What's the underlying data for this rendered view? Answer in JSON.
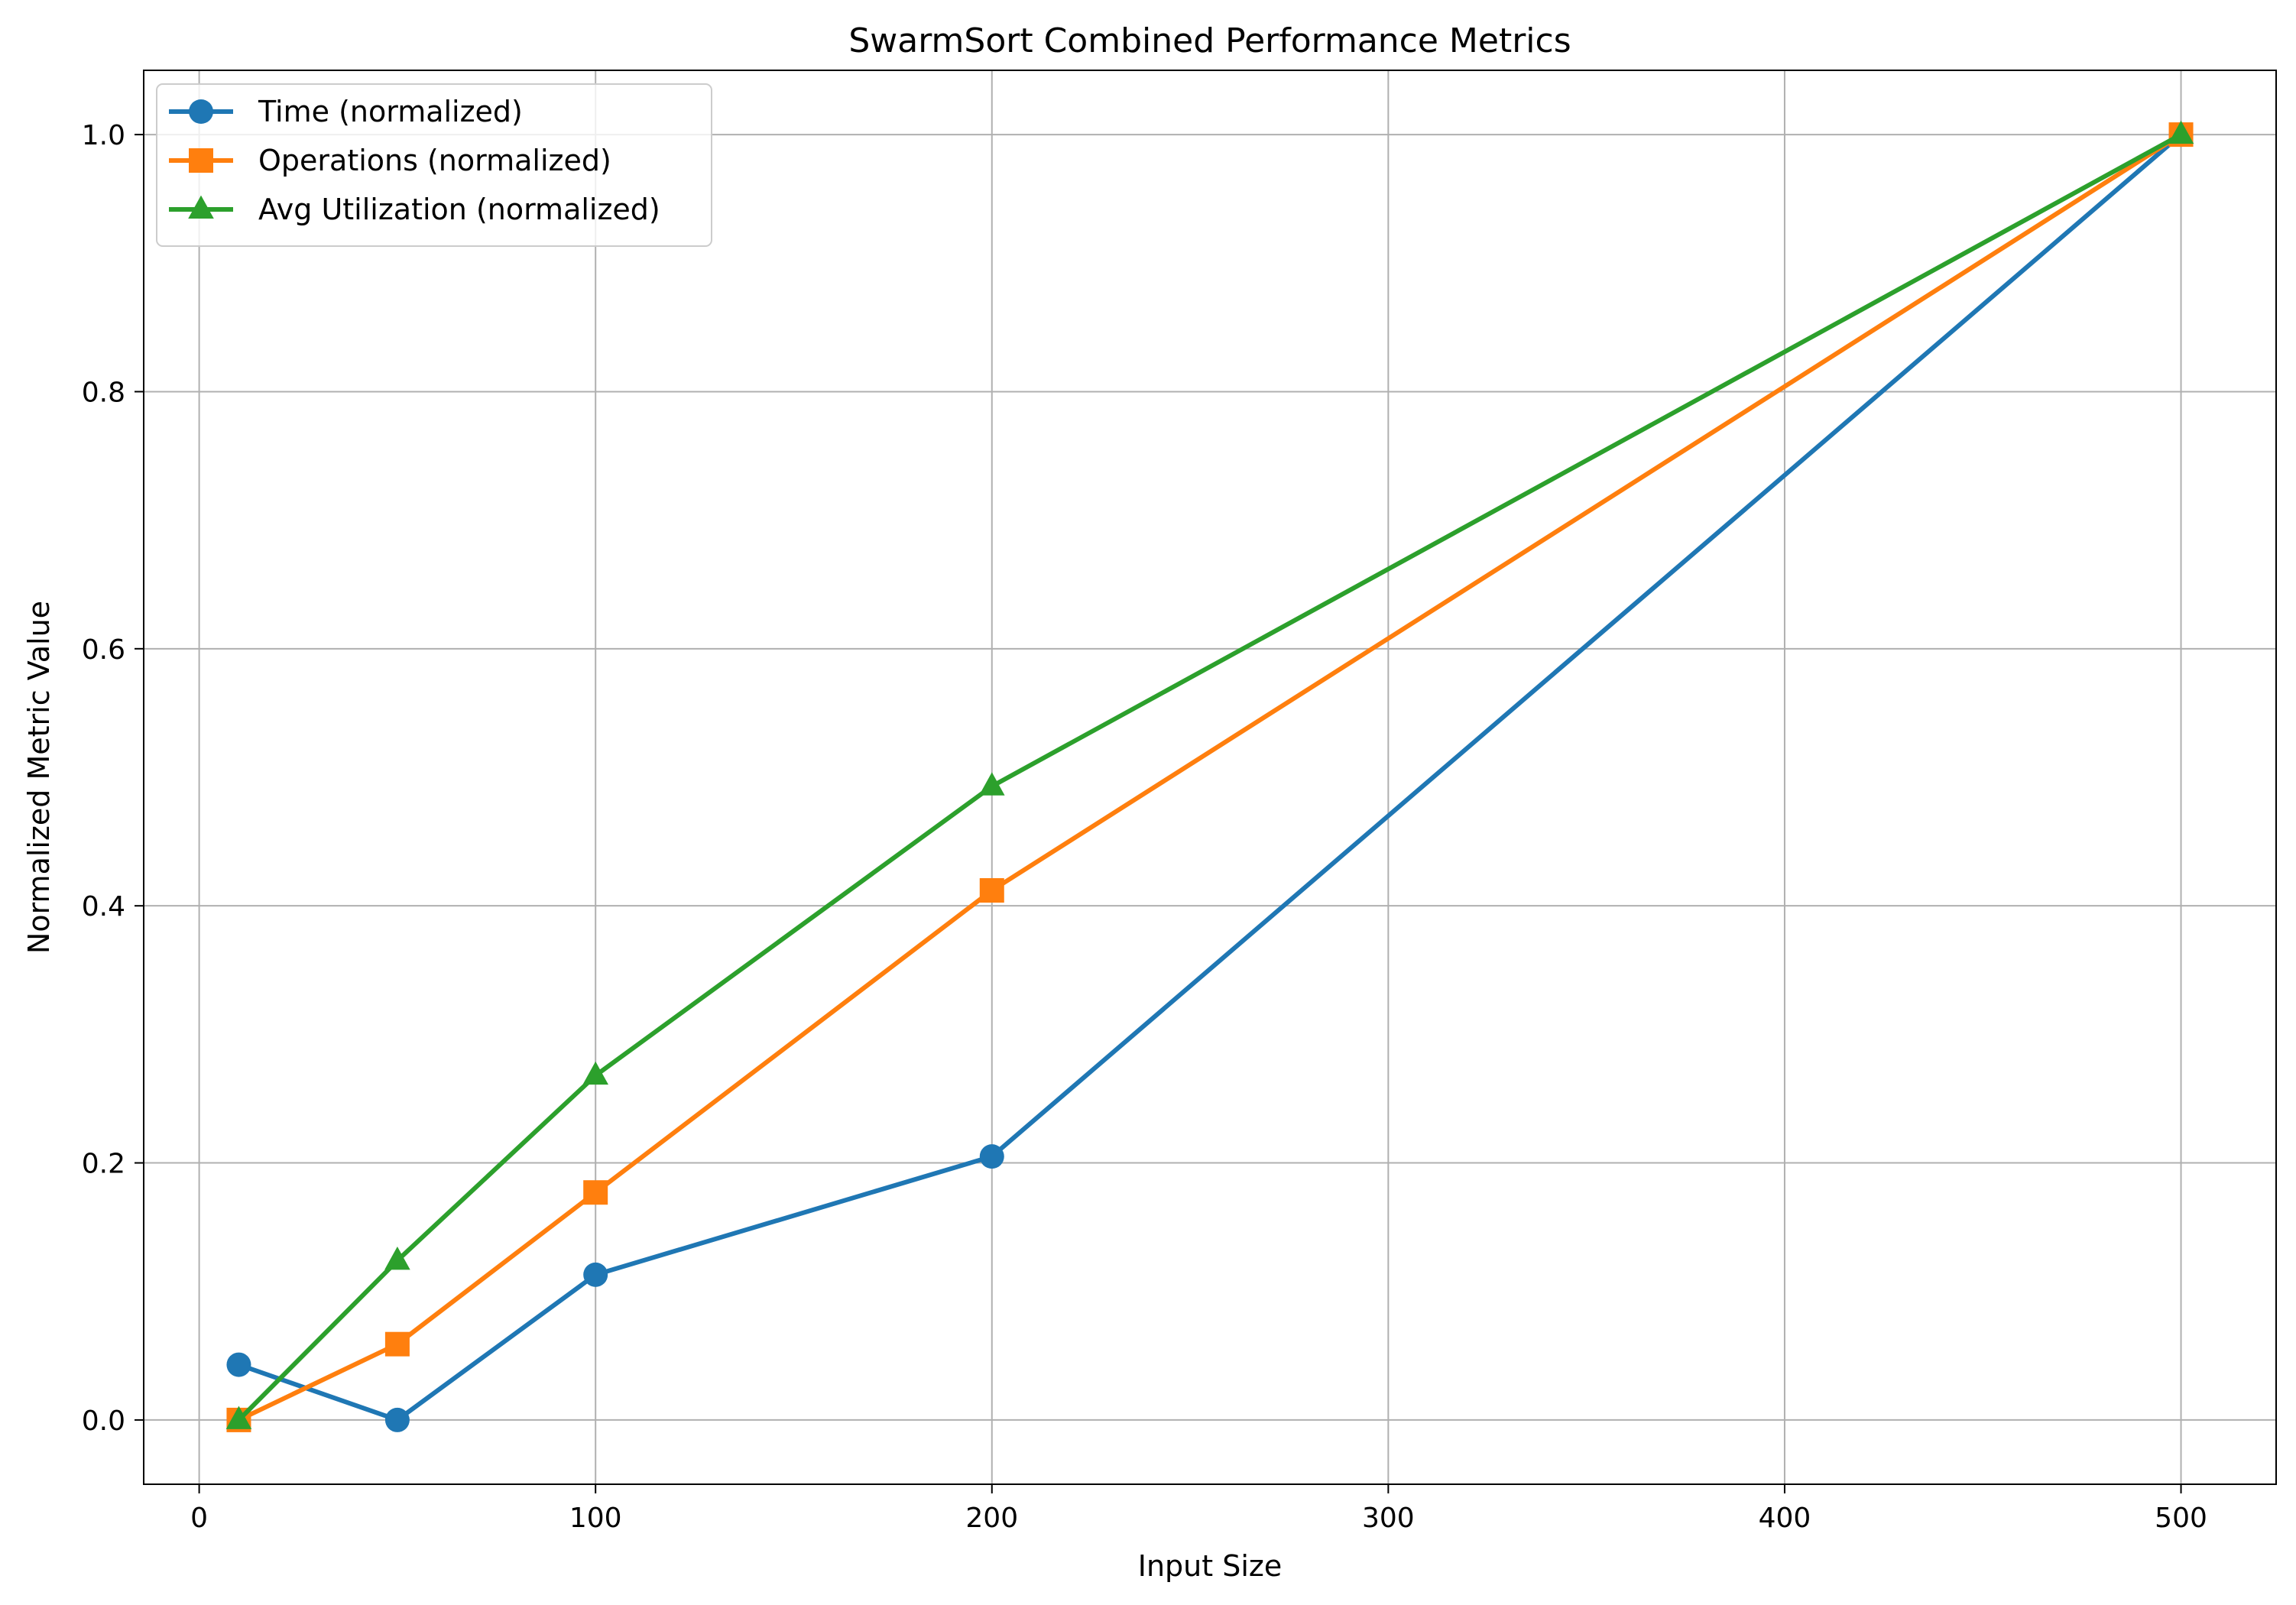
{
  "chart_data": {
    "type": "line",
    "title": "SwarmSort Combined Performance Metrics",
    "xlabel": "Input Size",
    "ylabel": "Normalized Metric Value",
    "x": [
      10,
      50,
      100,
      200,
      500
    ],
    "xlim": [
      -14,
      524
    ],
    "ylim": [
      -0.05,
      1.05
    ],
    "xticks": [
      0,
      100,
      200,
      300,
      400,
      500
    ],
    "yticks": [
      0.0,
      0.2,
      0.4,
      0.6,
      0.8,
      1.0
    ],
    "xtick_labels": [
      "0",
      "100",
      "200",
      "300",
      "400",
      "500"
    ],
    "ytick_labels": [
      "0.0",
      "0.2",
      "0.4",
      "0.6",
      "0.8",
      "1.0"
    ],
    "grid": true,
    "legend_position": "top-left",
    "series": [
      {
        "name": "Time (normalized)",
        "color": "#1f77b4",
        "marker": "circle",
        "values": [
          0.043,
          0.0,
          0.113,
          0.205,
          1.0
        ]
      },
      {
        "name": "Operations (normalized)",
        "color": "#ff7f0e",
        "marker": "square",
        "values": [
          0.0,
          0.059,
          0.177,
          0.412,
          1.0
        ]
      },
      {
        "name": "Avg Utilization (normalized)",
        "color": "#2ca02c",
        "marker": "triangle",
        "values": [
          0.0,
          0.124,
          0.268,
          0.493,
          1.0
        ]
      }
    ]
  }
}
